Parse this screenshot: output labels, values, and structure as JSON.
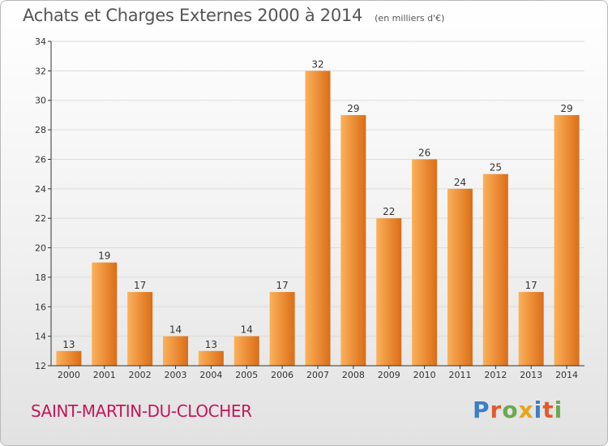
{
  "header": {
    "title": "Achats et Charges Externes 2000 à 2014",
    "subtitle": "(en milliers d'€)"
  },
  "commune": "SAINT-MARTIN-DU-CLOCHER",
  "logo": {
    "text": "Proxiti",
    "letter_colors": [
      "#3a7fc6",
      "#e25b2b",
      "#6aa84f",
      "#e8a317",
      "#3a7fc6",
      "#e25b2b",
      "#6aa84f"
    ]
  },
  "colors": {
    "bar_light": "#fbb15a",
    "bar_dark": "#db6d17",
    "axis": "#333333",
    "grid": "#dcdcdc",
    "title": "#555555",
    "commune": "#c2185b"
  },
  "chart_data": {
    "type": "bar",
    "title": "Achats et Charges Externes 2000 à 2014",
    "subtitle": "(en milliers d'€)",
    "categories": [
      "2000",
      "2001",
      "2002",
      "2003",
      "2004",
      "2005",
      "2006",
      "2007",
      "2008",
      "2009",
      "2010",
      "2011",
      "2012",
      "2013",
      "2014"
    ],
    "values": [
      13,
      19,
      17,
      14,
      13,
      14,
      17,
      32,
      29,
      22,
      26,
      24,
      25,
      17,
      29
    ],
    "ylim": [
      12,
      34
    ],
    "yticks": [
      12,
      14,
      16,
      18,
      20,
      22,
      24,
      26,
      28,
      30,
      32,
      34
    ],
    "grid": true,
    "data_labels": true
  }
}
